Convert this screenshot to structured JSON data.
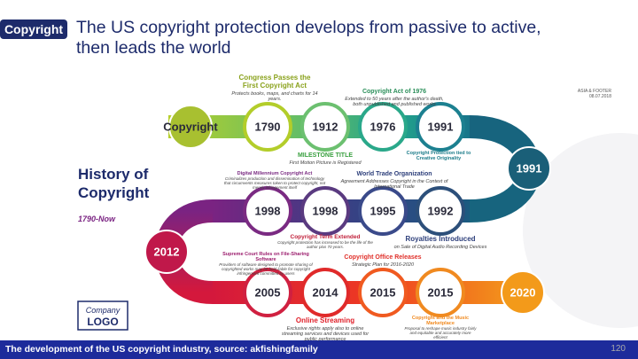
{
  "header": {
    "tag": "Copyright",
    "title": "The US copyright protection develops from passive to active, then leads the world"
  },
  "sidebar": {
    "title": "History of Copyright",
    "range": "1790-Now"
  },
  "stamp": {
    "line1": "ASIA & FOOTER",
    "line2": "08.07.2018"
  },
  "nodes": [
    {
      "label": "Copyright"
    },
    {
      "label": "1790"
    },
    {
      "label": "1912"
    },
    {
      "label": "1976"
    },
    {
      "label": "1991"
    },
    {
      "label": "1991"
    },
    {
      "label": "1998"
    },
    {
      "label": "1998"
    },
    {
      "label": "1995"
    },
    {
      "label": "1992"
    },
    {
      "label": "2012"
    },
    {
      "label": "2005"
    },
    {
      "label": "2014"
    },
    {
      "label": "2015"
    },
    {
      "label": "2015"
    },
    {
      "label": "2020"
    }
  ],
  "events": [
    {
      "title": "Congress Passes the First Copyright Act",
      "text": "Protects books, maps, and charts for 14 years."
    },
    {
      "title": "Copyright Act of 1976",
      "text": "Extended to 50 years after the author's death, both unpublished and published works"
    },
    {
      "title": "Copyright Protection tied to Creative Originality"
    },
    {
      "title": "MILESTONE TITLE",
      "text": "First Motion Picture is Registered"
    },
    {
      "title": "Digital Millennium Copyright Act",
      "text": "Criminalizes production and dissemination of technology that circumvents measures taken to protect copyright, not merely infringement itself"
    },
    {
      "title": "World Trade Organization",
      "text": "Agreement Addresses Copyright in the Context of International Trade"
    },
    {
      "title": "Copyright Term Extended",
      "text": "Copyright protection has increased to be the life of the author plus 70 years."
    },
    {
      "title": "Royalties Introduced",
      "text": "on Sale of Digital Audio Recording Devices"
    },
    {
      "title": "Supreme Court Rules on File-Sharing Software",
      "text": "Providers of software designed to promote sharing of copyrighted works may be held liable for copyright infringement committed by users"
    },
    {
      "title": "Copyright Office Releases",
      "text": "Strategic Plan for 2016-2020"
    },
    {
      "title": "Online Streaming",
      "text": "Exclusive rights apply also to online streaming services and devices used for public performance"
    },
    {
      "title": "Copyright and the Music Marketplace",
      "text": "Proposal to reshape music industry fairly and equitable and accurately more efficient"
    }
  ],
  "logo": {
    "line1": "Company",
    "line2": "LOGO"
  },
  "footer": {
    "caption": "The development of the US copyright industry, source: akfishingfamily",
    "page": "120"
  }
}
